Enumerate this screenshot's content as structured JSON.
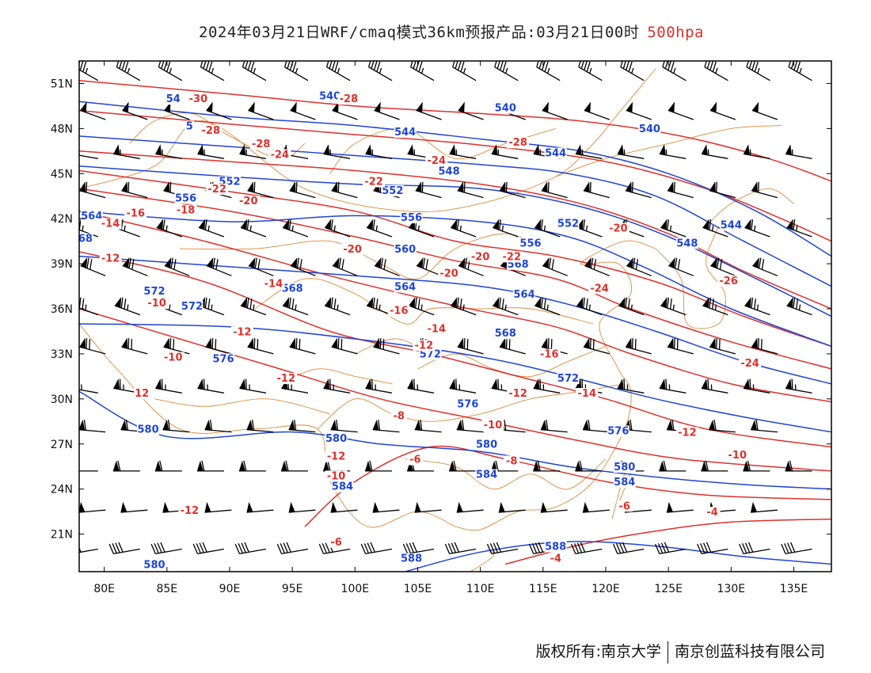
{
  "title": {
    "main": "2024年03月21日WRF/cmaq模式36km预报产品:03月21日00时",
    "level": "500hpa",
    "level_color": "#e0302a"
  },
  "map": {
    "lon_range": [
      78,
      138
    ],
    "lat_range": [
      18.5,
      52.5
    ],
    "x_ticks": [
      80,
      85,
      90,
      95,
      100,
      105,
      110,
      115,
      120,
      125,
      130,
      135
    ],
    "x_tick_labels": [
      "80E",
      "85E",
      "90E",
      "95E",
      "100E",
      "105E",
      "110E",
      "115E",
      "120E",
      "125E",
      "130E",
      "135E"
    ],
    "y_ticks": [
      21,
      24,
      27,
      30,
      33,
      36,
      39,
      42,
      45,
      48,
      51
    ],
    "y_tick_labels": [
      "21N",
      "24N",
      "27N",
      "30N",
      "33N",
      "36N",
      "39N",
      "42N",
      "45N",
      "48N",
      "51N"
    ],
    "colors": {
      "geopotential": "#1f45d6",
      "temperature": "#e0302a",
      "boundaries": "#e08a3a",
      "wind_barbs": "#000000",
      "frame": "#000000"
    },
    "geopotential_contours": [
      {
        "label": "540",
        "points": [
          [
            78,
            49.8
          ],
          [
            90,
            48.8
          ],
          [
            100,
            48.2
          ],
          [
            110,
            47.3
          ],
          [
            118,
            46.5
          ],
          [
            125,
            45.0
          ],
          [
            132,
            42.5
          ],
          [
            138,
            39.5
          ]
        ]
      },
      {
        "label": "544",
        "points": [
          [
            78,
            47.5
          ],
          [
            90,
            46.8
          ],
          [
            100,
            46.2
          ],
          [
            110,
            45.6
          ],
          [
            117,
            45.0
          ],
          [
            124,
            43.5
          ],
          [
            131,
            40.5
          ],
          [
            138,
            37.5
          ]
        ]
      },
      {
        "label": "548",
        "points": [
          [
            78,
            45.5
          ],
          [
            90,
            44.8
          ],
          [
            100,
            44.3
          ],
          [
            110,
            44.0
          ],
          [
            118,
            42.8
          ],
          [
            125,
            40.8
          ],
          [
            132,
            38.0
          ],
          [
            138,
            35.5
          ]
        ]
      },
      {
        "label": "556",
        "points": [
          [
            78,
            42.5
          ],
          [
            90,
            41.8
          ],
          [
            100,
            42.2
          ],
          [
            110,
            41.8
          ],
          [
            117,
            40.8
          ],
          [
            123,
            38.8
          ],
          [
            130,
            36.0
          ],
          [
            138,
            33.5
          ]
        ]
      },
      {
        "label": "564",
        "points": [
          [
            78,
            39.5
          ],
          [
            90,
            38.8
          ],
          [
            100,
            38.2
          ],
          [
            110,
            37.5
          ],
          [
            117,
            36.3
          ],
          [
            124,
            34.5
          ],
          [
            131,
            32.5
          ],
          [
            138,
            31.0
          ]
        ]
      },
      {
        "label": "572",
        "points": [
          [
            78,
            35.0
          ],
          [
            90,
            34.8
          ],
          [
            100,
            34.0
          ],
          [
            110,
            32.8
          ],
          [
            117,
            31.5
          ],
          [
            124,
            30.0
          ],
          [
            131,
            28.8
          ],
          [
            138,
            27.8
          ]
        ]
      },
      {
        "label": "580",
        "points": [
          [
            78,
            30.5
          ],
          [
            85,
            27.5
          ],
          [
            95,
            27.8
          ],
          [
            102,
            27.0
          ],
          [
            110,
            26.5
          ],
          [
            117,
            25.5
          ],
          [
            124,
            24.8
          ],
          [
            131,
            24.3
          ],
          [
            138,
            24.0
          ]
        ]
      },
      {
        "label": "588",
        "points": [
          [
            104,
            18.5
          ],
          [
            110,
            19.8
          ],
          [
            117,
            20.5
          ],
          [
            124,
            20.2
          ],
          [
            131,
            19.5
          ],
          [
            138,
            19.0
          ]
        ]
      }
    ],
    "temperature_contours": [
      {
        "label": "-30",
        "points": [
          [
            78,
            51.2
          ],
          [
            90,
            50.3
          ],
          [
            100,
            49.5
          ],
          [
            110,
            49.0
          ],
          [
            118,
            48.5
          ],
          [
            126,
            47.5
          ],
          [
            133,
            46.0
          ],
          [
            138,
            44.5
          ]
        ]
      },
      {
        "label": "-28",
        "points": [
          [
            78,
            49.2
          ],
          [
            90,
            48.3
          ],
          [
            100,
            47.6
          ],
          [
            110,
            46.9
          ],
          [
            120,
            45.8
          ],
          [
            128,
            44.0
          ],
          [
            134,
            42.0
          ],
          [
            138,
            40.5
          ]
        ]
      },
      {
        "label": "-24",
        "points": [
          [
            78,
            46.5
          ],
          [
            90,
            45.8
          ],
          [
            100,
            45.2
          ],
          [
            110,
            44.3
          ],
          [
            118,
            43.0
          ],
          [
            125,
            41.0
          ],
          [
            131,
            38.5
          ],
          [
            138,
            36.0
          ]
        ]
      },
      {
        "label": "-22",
        "points": [
          [
            78,
            45.2
          ],
          [
            90,
            43.8
          ],
          [
            100,
            42.5
          ],
          [
            108,
            40.5
          ],
          [
            116,
            39.5
          ],
          [
            124,
            37.8
          ],
          [
            131,
            35.5
          ],
          [
            138,
            33.5
          ]
        ]
      },
      {
        "label": "-20",
        "points": [
          [
            78,
            44.0
          ],
          [
            90,
            42.5
          ],
          [
            100,
            40.8
          ],
          [
            108,
            39.2
          ],
          [
            116,
            38.0
          ],
          [
            122,
            36.0
          ],
          [
            130,
            33.8
          ],
          [
            138,
            32.0
          ]
        ]
      },
      {
        "label": "-16",
        "points": [
          [
            78,
            42.5
          ],
          [
            88,
            40.5
          ],
          [
            98,
            38.2
          ],
          [
            108,
            36.2
          ],
          [
            116,
            34.8
          ],
          [
            122,
            33.0
          ],
          [
            130,
            31.0
          ],
          [
            138,
            29.8
          ]
        ]
      },
      {
        "label": "-12",
        "points": [
          [
            78,
            39.8
          ],
          [
            88,
            37.8
          ],
          [
            98,
            34.5
          ],
          [
            106,
            33.0
          ],
          [
            113,
            31.5
          ],
          [
            120,
            30.0
          ],
          [
            128,
            28.0
          ],
          [
            138,
            26.8
          ]
        ]
      },
      {
        "label": "-10",
        "points": [
          [
            78,
            36.0
          ],
          [
            86,
            34.0
          ],
          [
            94,
            32.0
          ],
          [
            102,
            30.0
          ],
          [
            110,
            28.6
          ],
          [
            118,
            27.2
          ],
          [
            126,
            26.0
          ],
          [
            138,
            25.2
          ]
        ]
      },
      {
        "label": "-8",
        "points": [
          [
            96,
            21.5
          ],
          [
            100,
            24.5
          ],
          [
            106,
            26.8
          ],
          [
            112,
            26.0
          ],
          [
            120,
            24.5
          ],
          [
            128,
            23.6
          ],
          [
            138,
            23.3
          ]
        ]
      },
      {
        "label": "-4",
        "points": [
          [
            112,
            19.0
          ],
          [
            118,
            20.3
          ],
          [
            124,
            21.2
          ],
          [
            130,
            21.8
          ],
          [
            138,
            22.0
          ]
        ]
      }
    ],
    "geopotential_labels": [
      {
        "text": "54",
        "lon": 85.5,
        "lat": 49.8
      },
      {
        "text": "5",
        "lon": 86.8,
        "lat": 48.0
      },
      {
        "text": "540",
        "lon": 98,
        "lat": 50.0
      },
      {
        "text": "540",
        "lon": 112,
        "lat": 49.2
      },
      {
        "text": "540",
        "lon": 123.5,
        "lat": 47.8
      },
      {
        "text": "544",
        "lon": 104,
        "lat": 47.6
      },
      {
        "text": "544",
        "lon": 116,
        "lat": 46.2
      },
      {
        "text": "548",
        "lon": 107.5,
        "lat": 45.0
      },
      {
        "text": "552",
        "lon": 90,
        "lat": 44.3
      },
      {
        "text": "552",
        "lon": 103,
        "lat": 43.7
      },
      {
        "text": "556",
        "lon": 86.5,
        "lat": 43.2
      },
      {
        "text": "556",
        "lon": 104.5,
        "lat": 41.9
      },
      {
        "text": "556",
        "lon": 114,
        "lat": 40.2
      },
      {
        "text": "552",
        "lon": 117,
        "lat": 41.5
      },
      {
        "text": "548",
        "lon": 126.5,
        "lat": 40.2
      },
      {
        "text": "544",
        "lon": 130,
        "lat": 41.4
      },
      {
        "text": "564",
        "lon": 79,
        "lat": 42.0
      },
      {
        "text": "68",
        "lon": 78.5,
        "lat": 40.5
      },
      {
        "text": "560",
        "lon": 104,
        "lat": 39.8
      },
      {
        "text": "568",
        "lon": 113,
        "lat": 38.8
      },
      {
        "text": "568",
        "lon": 95,
        "lat": 37.2
      },
      {
        "text": "564",
        "lon": 104,
        "lat": 37.3
      },
      {
        "text": "564",
        "lon": 113.5,
        "lat": 36.8
      },
      {
        "text": "572",
        "lon": 84,
        "lat": 37.0
      },
      {
        "text": "572",
        "lon": 87,
        "lat": 36.0
      },
      {
        "text": "568",
        "lon": 112,
        "lat": 34.2
      },
      {
        "text": "572",
        "lon": 106,
        "lat": 32.8
      },
      {
        "text": "576",
        "lon": 89.5,
        "lat": 32.5
      },
      {
        "text": "572",
        "lon": 117,
        "lat": 31.2
      },
      {
        "text": "576",
        "lon": 109,
        "lat": 29.5
      },
      {
        "text": "576",
        "lon": 121,
        "lat": 27.7
      },
      {
        "text": "580",
        "lon": 83.5,
        "lat": 27.8
      },
      {
        "text": "580",
        "lon": 98.5,
        "lat": 27.2
      },
      {
        "text": "580",
        "lon": 110.5,
        "lat": 26.8
      },
      {
        "text": "580",
        "lon": 121.5,
        "lat": 25.3
      },
      {
        "text": "584",
        "lon": 99,
        "lat": 24.0
      },
      {
        "text": "584",
        "lon": 110.5,
        "lat": 24.8
      },
      {
        "text": "584",
        "lon": 121.5,
        "lat": 24.3
      },
      {
        "text": "588",
        "lon": 116,
        "lat": 20.0
      },
      {
        "text": "588",
        "lon": 104.5,
        "lat": 19.2
      },
      {
        "text": "580",
        "lon": 84,
        "lat": 18.8
      }
    ],
    "temperature_labels": [
      {
        "text": "-30",
        "lon": 87.5,
        "lat": 49.8
      },
      {
        "text": "-28",
        "lon": 99.5,
        "lat": 49.8
      },
      {
        "text": "-28",
        "lon": 88.5,
        "lat": 47.7
      },
      {
        "text": "-28",
        "lon": 92.5,
        "lat": 46.8
      },
      {
        "text": "-24",
        "lon": 94,
        "lat": 46.1
      },
      {
        "text": "-28",
        "lon": 113,
        "lat": 46.9
      },
      {
        "text": "-24",
        "lon": 106.5,
        "lat": 45.7
      },
      {
        "text": "-22",
        "lon": 89,
        "lat": 43.8
      },
      {
        "text": "-22",
        "lon": 101.5,
        "lat": 44.3
      },
      {
        "text": "-20",
        "lon": 91.5,
        "lat": 43.0
      },
      {
        "text": "-18",
        "lon": 86.5,
        "lat": 42.4
      },
      {
        "text": "-16",
        "lon": 82.5,
        "lat": 42.2
      },
      {
        "text": "-14",
        "lon": 80.5,
        "lat": 41.5
      },
      {
        "text": "-12",
        "lon": 80.5,
        "lat": 39.2
      },
      {
        "text": "-20",
        "lon": 99.8,
        "lat": 39.8
      },
      {
        "text": "-20",
        "lon": 110,
        "lat": 39.3
      },
      {
        "text": "-22",
        "lon": 112.5,
        "lat": 39.3
      },
      {
        "text": "-20",
        "lon": 121,
        "lat": 41.2
      },
      {
        "text": "-26",
        "lon": 129.8,
        "lat": 37.7
      },
      {
        "text": "-24",
        "lon": 119.5,
        "lat": 37.2
      },
      {
        "text": "-14",
        "lon": 93.5,
        "lat": 37.5
      },
      {
        "text": "-20",
        "lon": 107.5,
        "lat": 38.2
      },
      {
        "text": "-10",
        "lon": 84.2,
        "lat": 36.2
      },
      {
        "text": "-16",
        "lon": 103.5,
        "lat": 35.7
      },
      {
        "text": "-12",
        "lon": 91,
        "lat": 34.3
      },
      {
        "text": "-14",
        "lon": 106.5,
        "lat": 34.5
      },
      {
        "text": "-12",
        "lon": 105.5,
        "lat": 33.4
      },
      {
        "text": "-16",
        "lon": 115.5,
        "lat": 32.8
      },
      {
        "text": "-10",
        "lon": 85.5,
        "lat": 32.6
      },
      {
        "text": "-12",
        "lon": 94.5,
        "lat": 31.2
      },
      {
        "text": "12",
        "lon": 83,
        "lat": 30.2
      },
      {
        "text": "-12",
        "lon": 113,
        "lat": 30.2
      },
      {
        "text": "-14",
        "lon": 118.5,
        "lat": 30.2
      },
      {
        "text": "-24",
        "lon": 131.5,
        "lat": 32.2
      },
      {
        "text": "-12",
        "lon": 126.5,
        "lat": 27.6
      },
      {
        "text": "-8",
        "lon": 103.5,
        "lat": 28.7
      },
      {
        "text": "-10",
        "lon": 111,
        "lat": 28.1
      },
      {
        "text": "-10",
        "lon": 130.5,
        "lat": 26.1
      },
      {
        "text": "-12",
        "lon": 98.5,
        "lat": 26.0
      },
      {
        "text": "-6",
        "lon": 104.8,
        "lat": 25.8
      },
      {
        "text": "-8",
        "lon": 112.5,
        "lat": 25.7
      },
      {
        "text": "-10",
        "lon": 98.5,
        "lat": 24.7
      },
      {
        "text": "-12",
        "lon": 86.8,
        "lat": 22.4
      },
      {
        "text": "-6",
        "lon": 121.5,
        "lat": 22.7
      },
      {
        "text": "-4",
        "lon": 128.5,
        "lat": 22.3
      },
      {
        "text": "-6",
        "lon": 98.5,
        "lat": 20.3
      },
      {
        "text": "-4",
        "lon": 116,
        "lat": 19.2
      }
    ],
    "wind_barbs": {
      "lon_start": 79.5,
      "lon_step": 3.35,
      "lat_start": 20.0,
      "lat_step": 2.6,
      "rows": [
        {
          "lat": 20.0,
          "dir": 260,
          "speed": 40
        },
        {
          "lat": 22.6,
          "dir": 265,
          "speed": 50
        },
        {
          "lat": 25.2,
          "dir": 270,
          "speed": 60
        },
        {
          "lat": 27.8,
          "dir": 275,
          "speed": 60
        },
        {
          "lat": 30.4,
          "dir": 280,
          "speed": 65
        },
        {
          "lat": 33.0,
          "dir": 285,
          "speed": 70
        },
        {
          "lat": 35.6,
          "dir": 290,
          "speed": 75
        },
        {
          "lat": 38.2,
          "dir": 292,
          "speed": 70
        },
        {
          "lat": 40.8,
          "dir": 290,
          "speed": 65
        },
        {
          "lat": 43.4,
          "dir": 285,
          "speed": 60
        },
        {
          "lat": 46.0,
          "dir": 280,
          "speed": 55
        },
        {
          "lat": 48.6,
          "dir": 290,
          "speed": 50
        },
        {
          "lat": 51.2,
          "dir": 300,
          "speed": 45
        }
      ]
    }
  },
  "footer": {
    "left": "版权所有:南京大学",
    "right": "南京创蓝科技有限公司"
  }
}
